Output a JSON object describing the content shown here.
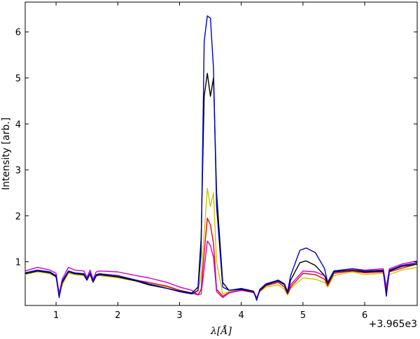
{
  "chart_data": {
    "type": "line",
    "title": "",
    "xlabel": "λ[Å]",
    "ylabel": "Intensity [arb.]",
    "x_offset_label": "+3.965e3",
    "xlim": [
      0.5,
      6.85
    ],
    "ylim": [
      0.05,
      6.65
    ],
    "grid": false,
    "legend": "none",
    "xticks": [
      1,
      2,
      3,
      4,
      5,
      6
    ],
    "yticks": [
      1,
      2,
      3,
      4,
      5,
      6
    ],
    "series": [
      {
        "color": "#c8c800",
        "x": [
          0.5,
          0.7,
          0.9,
          1.0,
          1.05,
          1.1,
          1.2,
          1.3,
          1.45,
          1.5,
          1.55,
          1.6,
          1.65,
          1.7,
          2.0,
          2.3,
          2.5,
          2.8,
          3.0,
          3.2,
          3.3,
          3.35,
          3.4,
          3.45,
          3.5,
          3.55,
          3.6,
          3.7,
          3.8,
          4.0,
          4.2,
          4.25,
          4.3,
          4.4,
          4.6,
          4.7,
          4.75,
          4.8,
          5.0,
          5.2,
          5.35,
          5.4,
          5.5,
          5.8,
          6.0,
          6.3,
          6.35,
          6.4,
          6.6,
          6.85
        ],
        "y": [
          0.72,
          0.78,
          0.74,
          0.66,
          0.32,
          0.5,
          0.75,
          0.72,
          0.7,
          0.6,
          0.72,
          0.55,
          0.68,
          0.7,
          0.65,
          0.58,
          0.52,
          0.45,
          0.38,
          0.32,
          0.35,
          0.7,
          1.6,
          2.6,
          2.2,
          2.5,
          1.0,
          0.3,
          0.35,
          0.38,
          0.33,
          0.2,
          0.35,
          0.45,
          0.5,
          0.4,
          0.28,
          0.42,
          0.65,
          0.62,
          0.55,
          0.45,
          0.7,
          0.78,
          0.72,
          0.75,
          0.4,
          0.72,
          0.82,
          0.88
        ]
      },
      {
        "color": "#e8000b",
        "x": [
          0.5,
          0.7,
          0.9,
          1.0,
          1.05,
          1.1,
          1.2,
          1.3,
          1.45,
          1.5,
          1.55,
          1.6,
          1.65,
          1.7,
          2.0,
          2.3,
          2.5,
          2.8,
          3.0,
          3.2,
          3.3,
          3.35,
          3.4,
          3.45,
          3.5,
          3.55,
          3.6,
          3.7,
          3.8,
          4.0,
          4.2,
          4.25,
          4.3,
          4.4,
          4.6,
          4.7,
          4.75,
          4.8,
          5.0,
          5.2,
          5.35,
          5.4,
          5.5,
          5.8,
          6.0,
          6.3,
          6.35,
          6.4,
          6.6,
          6.85
        ],
        "y": [
          0.75,
          0.8,
          0.77,
          0.7,
          0.32,
          0.55,
          0.78,
          0.75,
          0.72,
          0.6,
          0.74,
          0.57,
          0.7,
          0.72,
          0.68,
          0.6,
          0.55,
          0.47,
          0.38,
          0.32,
          0.28,
          0.4,
          1.2,
          1.95,
          1.8,
          1.4,
          0.4,
          0.25,
          0.33,
          0.38,
          0.33,
          0.2,
          0.36,
          0.48,
          0.55,
          0.45,
          0.3,
          0.45,
          0.75,
          0.72,
          0.62,
          0.48,
          0.75,
          0.8,
          0.76,
          0.78,
          0.42,
          0.78,
          0.86,
          0.95
        ]
      },
      {
        "color": "#cc00cc",
        "x": [
          0.5,
          0.7,
          0.9,
          1.0,
          1.05,
          1.1,
          1.2,
          1.3,
          1.45,
          1.5,
          1.55,
          1.6,
          1.65,
          1.7,
          2.0,
          2.3,
          2.5,
          2.8,
          3.0,
          3.2,
          3.3,
          3.35,
          3.4,
          3.45,
          3.5,
          3.55,
          3.6,
          3.7,
          3.8,
          4.0,
          4.2,
          4.25,
          4.3,
          4.4,
          4.6,
          4.7,
          4.75,
          4.8,
          5.0,
          5.2,
          5.35,
          5.4,
          5.5,
          5.8,
          6.0,
          6.3,
          6.35,
          6.4,
          6.6,
          6.85
        ],
        "y": [
          0.8,
          0.88,
          0.82,
          0.75,
          0.3,
          0.62,
          0.88,
          0.82,
          0.8,
          0.66,
          0.82,
          0.62,
          0.78,
          0.8,
          0.78,
          0.7,
          0.65,
          0.55,
          0.45,
          0.38,
          0.28,
          0.3,
          0.85,
          1.45,
          1.35,
          1.1,
          0.35,
          0.22,
          0.32,
          0.38,
          0.35,
          0.22,
          0.38,
          0.5,
          0.6,
          0.52,
          0.33,
          0.5,
          0.8,
          0.78,
          0.7,
          0.55,
          0.8,
          0.85,
          0.82,
          0.85,
          0.45,
          0.85,
          0.95,
          1.02
        ]
      },
      {
        "color": "#000000",
        "x": [
          0.5,
          0.7,
          0.9,
          1.0,
          1.05,
          1.1,
          1.2,
          1.3,
          1.45,
          1.5,
          1.55,
          1.6,
          1.65,
          1.7,
          2.0,
          2.3,
          2.5,
          2.8,
          3.0,
          3.2,
          3.3,
          3.35,
          3.4,
          3.45,
          3.5,
          3.55,
          3.6,
          3.7,
          3.8,
          4.0,
          4.2,
          4.25,
          4.3,
          4.4,
          4.6,
          4.7,
          4.75,
          4.8,
          4.95,
          5.05,
          5.2,
          5.35,
          5.4,
          5.5,
          5.8,
          6.0,
          6.3,
          6.35,
          6.4,
          6.6,
          6.85
        ],
        "y": [
          0.74,
          0.8,
          0.76,
          0.68,
          0.25,
          0.55,
          0.78,
          0.74,
          0.72,
          0.6,
          0.74,
          0.56,
          0.7,
          0.72,
          0.67,
          0.58,
          0.5,
          0.42,
          0.36,
          0.32,
          0.45,
          1.5,
          4.6,
          5.1,
          4.6,
          5.0,
          2.5,
          0.55,
          0.38,
          0.4,
          0.35,
          0.18,
          0.38,
          0.5,
          0.58,
          0.5,
          0.32,
          0.6,
          0.98,
          1.02,
          0.92,
          0.7,
          0.52,
          0.78,
          0.82,
          0.78,
          0.8,
          0.3,
          0.8,
          0.9,
          0.95
        ]
      },
      {
        "color": "#0000cc",
        "x": [
          0.5,
          0.7,
          0.9,
          1.0,
          1.05,
          1.1,
          1.2,
          1.3,
          1.45,
          1.5,
          1.55,
          1.6,
          1.65,
          1.7,
          2.0,
          2.3,
          2.5,
          2.8,
          3.0,
          3.2,
          3.3,
          3.35,
          3.4,
          3.45,
          3.5,
          3.55,
          3.6,
          3.7,
          3.8,
          4.0,
          4.2,
          4.25,
          4.3,
          4.4,
          4.6,
          4.7,
          4.75,
          4.8,
          4.95,
          5.05,
          5.2,
          5.35,
          5.4,
          5.5,
          5.8,
          6.0,
          6.3,
          6.35,
          6.4,
          6.6,
          6.85
        ],
        "y": [
          0.76,
          0.82,
          0.78,
          0.7,
          0.22,
          0.58,
          0.8,
          0.76,
          0.74,
          0.62,
          0.76,
          0.58,
          0.72,
          0.74,
          0.7,
          0.6,
          0.52,
          0.42,
          0.35,
          0.3,
          0.38,
          1.2,
          5.8,
          6.35,
          6.3,
          5.2,
          2.2,
          0.45,
          0.38,
          0.42,
          0.36,
          0.16,
          0.4,
          0.52,
          0.6,
          0.52,
          0.35,
          0.7,
          1.25,
          1.3,
          1.2,
          0.85,
          0.55,
          0.8,
          0.85,
          0.8,
          0.82,
          0.25,
          0.82,
          0.92,
          0.98
        ]
      }
    ]
  }
}
